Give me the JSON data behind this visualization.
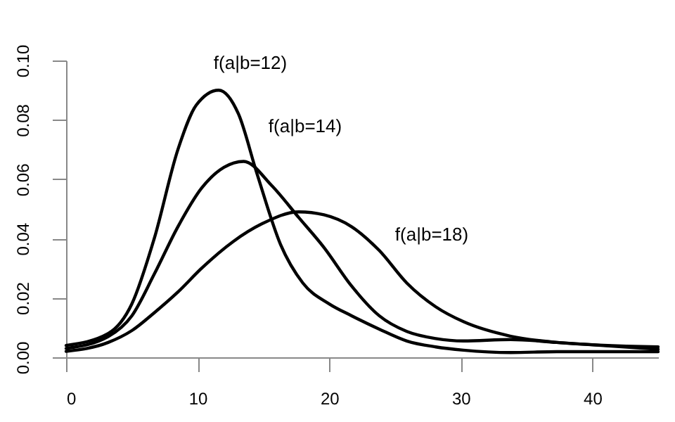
{
  "chart_data": {
    "type": "line",
    "xlim": [
      0,
      45
    ],
    "xticks": [
      0,
      10,
      20,
      30,
      40
    ],
    "ylim": [
      0,
      0.1
    ],
    "yticks": [
      {
        "value": 0,
        "label": "0.00"
      },
      {
        "value": 0.02,
        "label": "0.02"
      },
      {
        "value": 0.04,
        "label": "0.04"
      },
      {
        "value": 0.06,
        "label": "0.06"
      },
      {
        "value": 0.08,
        "label": "0.08"
      },
      {
        "value": 0.1,
        "label": "0.10"
      }
    ],
    "grid": false,
    "legend": false,
    "marker": "none",
    "line_style": "solid",
    "series": [
      {
        "color": "#000000",
        "x": [
          0,
          3.2,
          5,
          6.7,
          8.5,
          9.9,
          11.6,
          13.1,
          14.5,
          16.3,
          18,
          20,
          21.7,
          23.8,
          25.9,
          28.1,
          30.2,
          33.8,
          37.3,
          45
        ],
        "values": [
          0.004,
          0.008,
          0.018,
          0.04,
          0.07,
          0.085,
          0.09,
          0.082,
          0.062,
          0.038,
          0.025,
          0.018,
          0.014,
          0.0095,
          0.0055,
          0.0035,
          0.0024,
          0.0016,
          0.0019,
          0.0019
        ]
      },
      {
        "color": "#000000",
        "x": [
          0,
          3.2,
          5,
          6.7,
          8.5,
          10.3,
          12,
          13.5,
          15.6,
          17.7,
          19.6,
          21.7,
          23.8,
          25.9,
          28.1,
          30.2,
          33.8,
          37.3,
          45
        ],
        "values": [
          0.003,
          0.007,
          0.014,
          0.028,
          0.044,
          0.057,
          0.064,
          0.066,
          0.058,
          0.047,
          0.037,
          0.024,
          0.014,
          0.0087,
          0.0063,
          0.0055,
          0.006,
          0.005,
          0.0027
        ]
      },
      {
        "color": "#000000",
        "x": [
          0,
          3.2,
          5,
          6.7,
          8.5,
          10.3,
          12.7,
          14.9,
          17.7,
          19.6,
          21.7,
          23.8,
          25.9,
          28.1,
          30.2,
          33.8,
          37.3,
          45
        ],
        "values": [
          0.002,
          0.005,
          0.009,
          0.015,
          0.022,
          0.03,
          0.039,
          0.045,
          0.049,
          0.048,
          0.044,
          0.036,
          0.025,
          0.017,
          0.012,
          0.0071,
          0.005,
          0.0035
        ]
      }
    ],
    "annotations": [
      "f(a|b=12)",
      "f(a|b=14)",
      "f(a|b=18)"
    ]
  }
}
